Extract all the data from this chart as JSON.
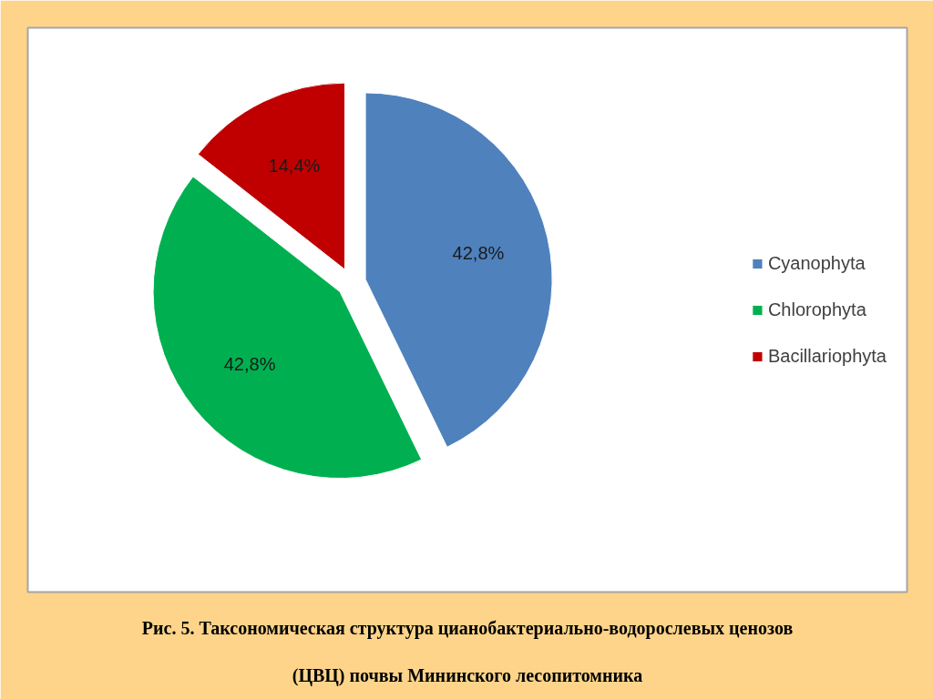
{
  "chart_data": {
    "type": "pie",
    "title": "Рис. 5. Таксономическая структура цианобактериально-водорослевых ценозов (ЦВЦ) почвы Мининского лесопитомника",
    "categories": [
      "Cyanophyta",
      "Chlorophyta",
      "Bacillariophyta"
    ],
    "values": [
      42.8,
      42.8,
      14.4
    ],
    "colors": [
      "#4f81bd",
      "#00b050",
      "#c00000"
    ],
    "value_labels": [
      "42,8%",
      "42,8%",
      "14,4%"
    ],
    "legend": "right"
  }
}
